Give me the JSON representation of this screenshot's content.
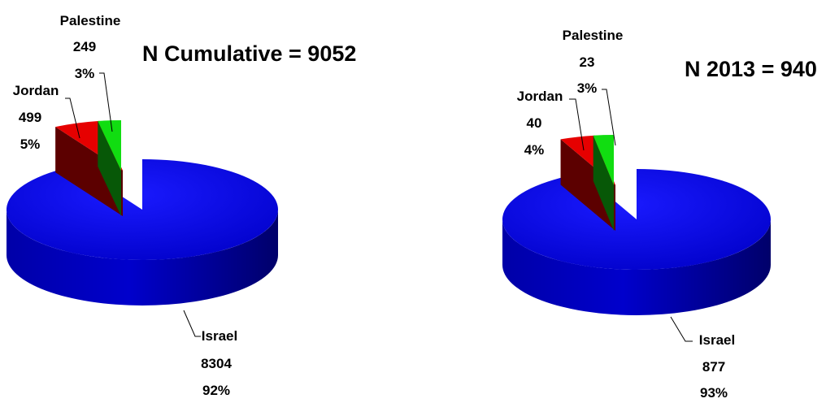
{
  "colors": {
    "israel": "#0000d6",
    "jordan": "#e60000",
    "palestine": "#11dd11"
  },
  "chart_data": [
    {
      "type": "pie",
      "title": "N Cumulative = 9052",
      "slices": [
        {
          "name": "Israel",
          "value": 8304,
          "percent": "92%"
        },
        {
          "name": "Jordan",
          "value": 499,
          "percent": "5%"
        },
        {
          "name": "Palestine",
          "value": 249,
          "percent": "3%"
        }
      ]
    },
    {
      "type": "pie",
      "title": "N 2013 = 940",
      "slices": [
        {
          "name": "Israel",
          "value": 877,
          "percent": "93%"
        },
        {
          "name": "Jordan",
          "value": 40,
          "percent": "4%"
        },
        {
          "name": "Palestine",
          "value": 23,
          "percent": "3%"
        }
      ]
    }
  ]
}
